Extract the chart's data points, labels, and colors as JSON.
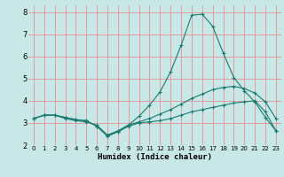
{
  "xlabel": "Humidex (Indice chaleur)",
  "xlim": [
    -0.5,
    23.5
  ],
  "ylim": [
    2,
    8.3
  ],
  "background_color": "#c8e8e8",
  "grid_color": "#e89090",
  "line_color": "#1a7a6e",
  "xticks": [
    0,
    1,
    2,
    3,
    4,
    5,
    6,
    7,
    8,
    9,
    10,
    11,
    12,
    13,
    14,
    15,
    16,
    17,
    18,
    19,
    20,
    21,
    22,
    23
  ],
  "yticks": [
    2,
    3,
    4,
    5,
    6,
    7,
    8
  ],
  "series": [
    {
      "x": [
        0,
        1,
        2,
        3,
        4,
        5,
        6,
        7,
        8,
        9,
        10,
        11,
        12,
        13,
        14,
        15,
        16,
        17,
        18,
        19,
        20,
        21,
        22,
        23
      ],
      "y": [
        3.2,
        3.35,
        3.35,
        3.25,
        3.15,
        3.1,
        2.85,
        2.4,
        2.6,
        2.85,
        3.0,
        3.05,
        3.1,
        3.2,
        3.35,
        3.5,
        3.6,
        3.7,
        3.8,
        3.9,
        3.95,
        4.0,
        3.5,
        2.65
      ]
    },
    {
      "x": [
        0,
        1,
        2,
        3,
        4,
        5,
        6,
        7,
        8,
        9,
        10,
        11,
        12,
        13,
        14,
        15,
        16,
        17,
        18,
        19,
        20,
        21,
        22,
        23
      ],
      "y": [
        3.2,
        3.35,
        3.35,
        3.2,
        3.1,
        3.05,
        2.9,
        2.45,
        2.65,
        2.9,
        3.05,
        3.2,
        3.4,
        3.6,
        3.85,
        4.1,
        4.3,
        4.5,
        4.6,
        4.65,
        4.55,
        4.35,
        3.95,
        3.2
      ]
    },
    {
      "x": [
        0,
        1,
        2,
        3,
        4,
        5,
        6,
        7,
        8,
        9,
        10,
        11,
        12,
        13,
        14,
        15,
        16,
        17,
        18,
        19,
        20,
        21,
        22,
        23
      ],
      "y": [
        3.2,
        3.35,
        3.35,
        3.25,
        3.15,
        3.1,
        2.85,
        2.45,
        2.6,
        2.9,
        3.3,
        3.8,
        4.4,
        5.3,
        6.5,
        7.85,
        7.9,
        7.35,
        6.15,
        5.05,
        4.45,
        3.95,
        3.25,
        2.65
      ]
    }
  ]
}
